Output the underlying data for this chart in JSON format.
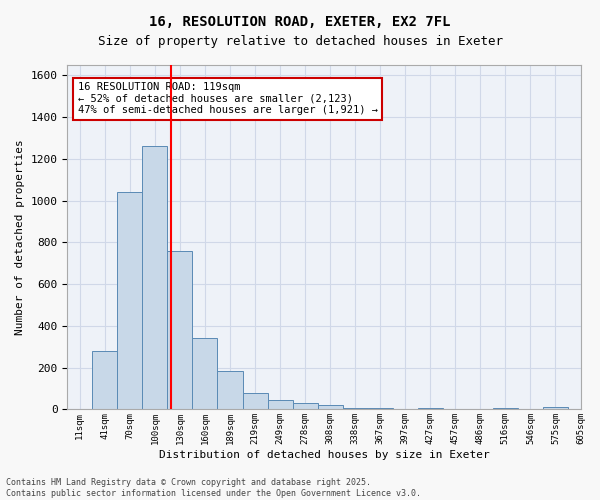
{
  "title_line1": "16, RESOLUTION ROAD, EXETER, EX2 7FL",
  "title_line2": "Size of property relative to detached houses in Exeter",
  "xlabel": "Distribution of detached houses by size in Exeter",
  "ylabel": "Number of detached properties",
  "bar_values": [
    0,
    280,
    1040,
    1260,
    760,
    340,
    185,
    80,
    45,
    30,
    20,
    5,
    5,
    0,
    5,
    0,
    0,
    5,
    0,
    10
  ],
  "bin_labels": [
    "11sqm",
    "41sqm",
    "70sqm",
    "100sqm",
    "130sqm",
    "160sqm",
    "189sqm",
    "219sqm",
    "249sqm",
    "278sqm",
    "308sqm",
    "338sqm",
    "367sqm",
    "397sqm",
    "427sqm",
    "457sqm",
    "486sqm",
    "516sqm",
    "546sqm",
    "575sqm",
    "605sqm"
  ],
  "bar_color": "#c8d8e8",
  "bar_edge_color": "#5a8ab5",
  "annotation_text": "16 RESOLUTION ROAD: 119sqm\n← 52% of detached houses are smaller (2,123)\n47% of semi-detached houses are larger (1,921) →",
  "annotation_box_color": "#ffffff",
  "annotation_box_edge": "#cc0000",
  "ylim": [
    0,
    1650
  ],
  "yticks": [
    0,
    200,
    400,
    600,
    800,
    1000,
    1200,
    1400,
    1600
  ],
  "grid_color": "#d0d8e8",
  "background_color": "#eef2f8",
  "footer_line1": "Contains HM Land Registry data © Crown copyright and database right 2025.",
  "footer_line2": "Contains public sector information licensed under the Open Government Licence v3.0."
}
